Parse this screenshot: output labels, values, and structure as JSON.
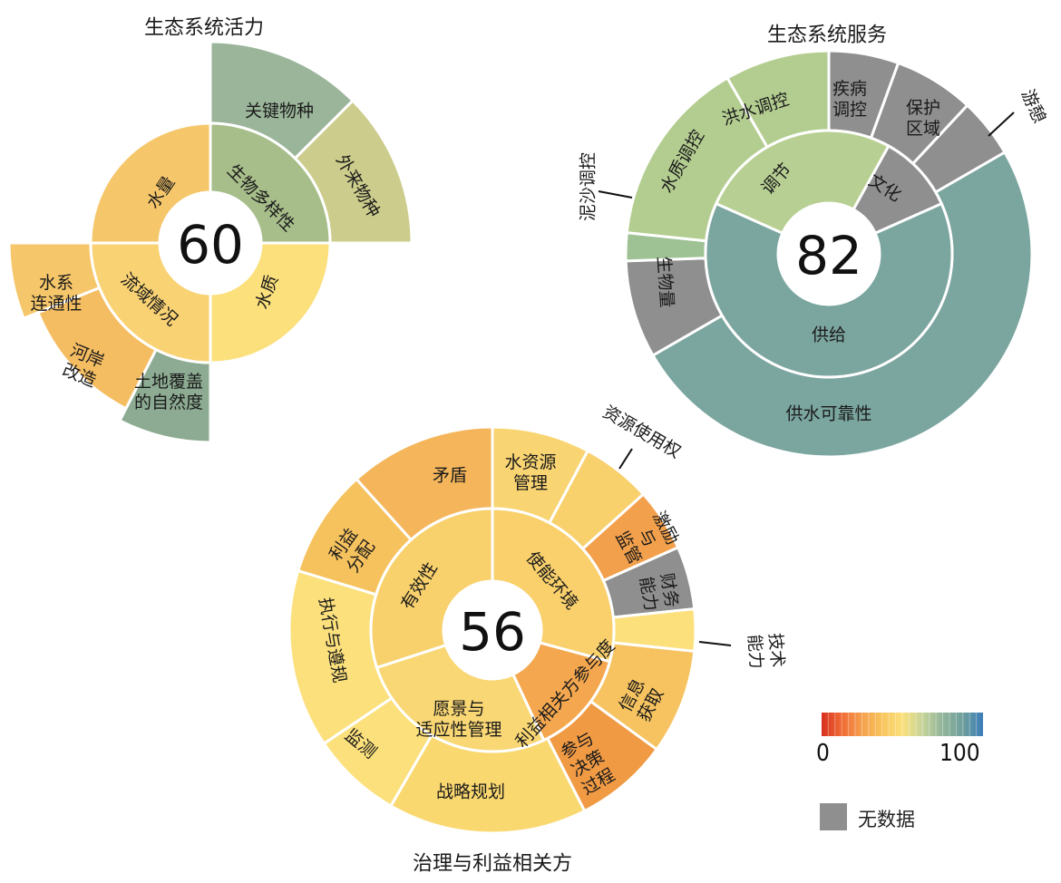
{
  "colors": {
    "no_data": "#8f8f8f",
    "scale": [
      "#d7301f",
      "#f06b35",
      "#f5a04e",
      "#f8c45c",
      "#fbe07c",
      "#c5d49a",
      "#92b49a",
      "#6f9f9c",
      "#3b7db8"
    ]
  },
  "legend": {
    "min": "0",
    "max": "100",
    "no_data": "无数据"
  },
  "chart_data": [
    {
      "type": "sunburst",
      "title": "生态系统活力",
      "score": "60",
      "inner": [
        {
          "label": "生物多样性",
          "color": "#a7bd8a"
        },
        {
          "label": "水质",
          "color": "#fbe07c"
        },
        {
          "label": "流域情况",
          "color": "#f9d274"
        },
        {
          "label": "水量",
          "color": "#f6c66a"
        }
      ],
      "outer": [
        {
          "label": "关键物种",
          "color": "#9ab59a"
        },
        {
          "label": "外来物种",
          "color": "#cccc8c"
        },
        {
          "label": "土地覆盖的自然度",
          "color": "#8cab92"
        },
        {
          "label": "河岸改造",
          "color": "#f5bd62"
        },
        {
          "label": "水系连通性",
          "color": "#f6c66a"
        }
      ]
    },
    {
      "type": "sunburst",
      "title": "生态系统服务",
      "score": "82",
      "inner": [
        {
          "label": "调节",
          "color": "#b7cf92"
        },
        {
          "label": "文化",
          "color": "#8f8f8f"
        },
        {
          "label": "供给",
          "color": "#7ba59f"
        }
      ],
      "outer": [
        {
          "label": "洪水调控",
          "color": "#b3cd90"
        },
        {
          "label": "疾病调控",
          "color": "#8f8f8f"
        },
        {
          "label": "保护区域",
          "color": "#8f8f8f"
        },
        {
          "label": "游憩",
          "color": "#8f8f8f"
        },
        {
          "label": "供水可靠性",
          "color": "#7ba59f"
        },
        {
          "label": "生物量",
          "color": "#8f8f8f"
        },
        {
          "label": "泥沙调控",
          "color": "#9fc295"
        },
        {
          "label": "水质调控",
          "color": "#b3cd90"
        }
      ]
    },
    {
      "type": "sunburst",
      "title": "治理与利益相关方",
      "score": "56",
      "inner": [
        {
          "label": "使能环境",
          "color": "#f9d06c"
        },
        {
          "label": "利益相关方参与度",
          "color": "#f4a74e"
        },
        {
          "label": "愿景与适应性管理",
          "color": "#f9d774"
        },
        {
          "label": "有效性",
          "color": "#f8d16c"
        }
      ],
      "outer": [
        {
          "label": "水资源管理",
          "color": "#f9d472"
        },
        {
          "label": "资源使用权",
          "color": "#f8d06c"
        },
        {
          "label": "激励与监管",
          "color": "#f2a04c"
        },
        {
          "label": "财务能力",
          "color": "#8f8f8f"
        },
        {
          "label": "技术能力",
          "color": "#fce07c"
        },
        {
          "label": "信息获取",
          "color": "#f6c360"
        },
        {
          "label": "参与决策过程",
          "color": "#f09a44"
        },
        {
          "label": "战略规划",
          "color": "#fad870"
        },
        {
          "label": "监测",
          "color": "#fbe07c"
        },
        {
          "label": "执行与遵规",
          "color": "#fbe07c"
        },
        {
          "label": "利益分配",
          "color": "#f6c25e"
        },
        {
          "label": "矛盾",
          "color": "#f5b55a"
        }
      ]
    }
  ]
}
